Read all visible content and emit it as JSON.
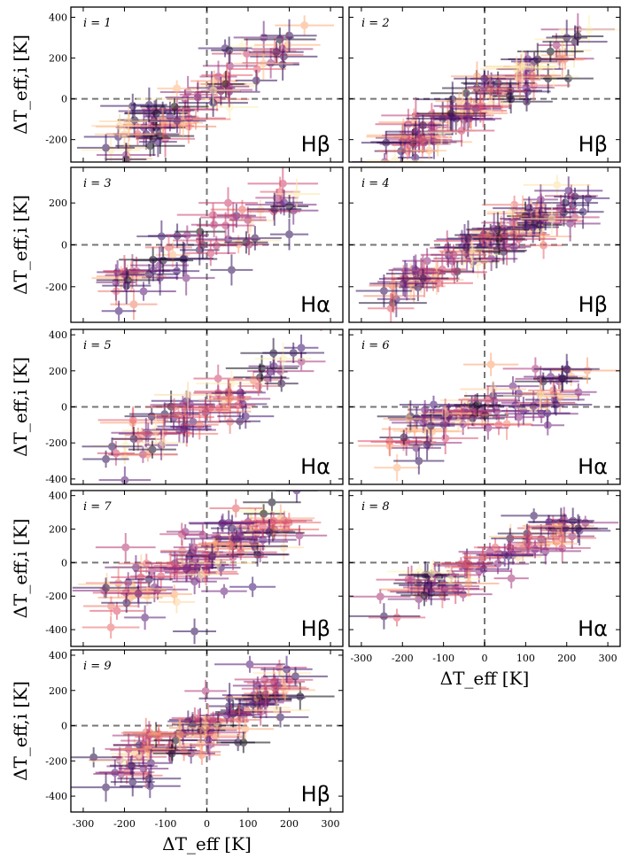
{
  "figure": {
    "ylabel": "ΔT_eff,i [K]",
    "xlabel": "ΔT_eff [K]",
    "x_ticks": [
      -300,
      -200,
      -100,
      0,
      100,
      200,
      300
    ],
    "colormap": [
      "#000004",
      "#3b0f70",
      "#8c2981",
      "#de4968",
      "#fe9f6d",
      "#fcfdbf"
    ]
  },
  "chart_data": [
    {
      "type": "scatter",
      "label": "i = 1",
      "line": "Hβ",
      "xlim": [
        -330,
        330
      ],
      "ylim": [
        -310,
        450
      ],
      "yticks": [
        -200,
        0,
        200,
        400
      ],
      "trend": {
        "slope": 1.15,
        "intercept": 10,
        "scatter": 70,
        "n": 80
      },
      "points": [
        [
          -245,
          -240
        ],
        [
          -140,
          -30
        ],
        [
          -180,
          -35
        ],
        [
          200,
          310
        ],
        [
          120,
          90
        ]
      ]
    },
    {
      "type": "scatter",
      "label": "i = 2",
      "line": "Hβ",
      "xlim": [
        -330,
        330
      ],
      "ylim": [
        -310,
        450
      ],
      "yticks": [
        -200,
        0,
        200,
        400
      ],
      "trend": {
        "slope": 1.1,
        "intercept": 0,
        "scatter": 55,
        "n": 110
      },
      "points": [
        [
          -240,
          -215
        ],
        [
          -150,
          -130
        ],
        [
          200,
          300
        ],
        [
          220,
          280
        ]
      ]
    },
    {
      "type": "scatter",
      "label": "i = 3",
      "line": "Hα",
      "xlim": [
        -330,
        330
      ],
      "ylim": [
        -370,
        370
      ],
      "yticks": [
        -200,
        0,
        200
      ],
      "trend": {
        "slope": 0.95,
        "intercept": 0,
        "scatter": 65,
        "n": 60
      },
      "points": [
        [
          -140,
          -140
        ],
        [
          -195,
          -195
        ],
        [
          200,
          50
        ],
        [
          60,
          -120
        ]
      ]
    },
    {
      "type": "scatter",
      "label": "i = 4",
      "line": "Hβ",
      "xlim": [
        -330,
        330
      ],
      "ylim": [
        -370,
        370
      ],
      "yticks": [
        -200,
        0,
        200
      ],
      "trend": {
        "slope": 1.0,
        "intercept": 0,
        "scatter": 45,
        "n": 110
      },
      "points": [
        [
          -245,
          -220
        ],
        [
          -150,
          -160
        ],
        [
          220,
          230
        ],
        [
          -40,
          30
        ]
      ]
    },
    {
      "type": "scatter",
      "label": "i = 5",
      "line": "Hα",
      "xlim": [
        -330,
        330
      ],
      "ylim": [
        -430,
        430
      ],
      "yticks": [
        -400,
        -200,
        0,
        200,
        400
      ],
      "trend": {
        "slope": 1.05,
        "intercept": 0,
        "scatter": 60,
        "n": 70
      },
      "points": [
        [
          -245,
          -290
        ],
        [
          -230,
          -220
        ],
        [
          210,
          300
        ],
        [
          80,
          -80
        ]
      ]
    },
    {
      "type": "scatter",
      "label": "i = 6",
      "line": "Hα",
      "xlim": [
        -330,
        330
      ],
      "ylim": [
        -430,
        430
      ],
      "yticks": [
        -400,
        -200,
        0,
        200,
        400
      ],
      "trend": {
        "slope": 0.75,
        "intercept": -20,
        "scatter": 70,
        "n": 80
      },
      "points": [
        [
          -160,
          -300
        ],
        [
          -140,
          -210
        ],
        [
          200,
          210
        ],
        [
          190,
          160
        ]
      ]
    },
    {
      "type": "scatter",
      "label": "i = 7",
      "line": "Hβ",
      "xlim": [
        -330,
        330
      ],
      "ylim": [
        -500,
        430
      ],
      "yticks": [
        -400,
        -200,
        0,
        200,
        400
      ],
      "trend": {
        "slope": 1.0,
        "intercept": 30,
        "scatter": 95,
        "n": 110
      },
      "points": [
        [
          -245,
          -150
        ],
        [
          -195,
          -240
        ],
        [
          -30,
          -410
        ],
        [
          -140,
          -100
        ]
      ]
    },
    {
      "type": "scatter",
      "label": "i = 8",
      "line": "Hα",
      "xlim": [
        -330,
        330
      ],
      "ylim": [
        -500,
        430
      ],
      "yticks": [
        -400,
        -200,
        0,
        200,
        400
      ],
      "trend": {
        "slope": 0.95,
        "intercept": 0,
        "scatter": 55,
        "n": 80
      },
      "points": [
        [
          -245,
          -320
        ],
        [
          -130,
          -180
        ],
        [
          120,
          280
        ],
        [
          215,
          250
        ]
      ]
    },
    {
      "type": "scatter",
      "label": "i = 9",
      "line": "Hβ",
      "xlim": [
        -330,
        330
      ],
      "ylim": [
        -490,
        430
      ],
      "yticks": [
        -400,
        -200,
        0,
        200,
        400
      ],
      "trend": {
        "slope": 1.1,
        "intercept": 0,
        "scatter": 85,
        "n": 110
      },
      "points": [
        [
          -245,
          -350
        ],
        [
          -140,
          -300
        ],
        [
          -180,
          -320
        ],
        [
          215,
          280
        ]
      ]
    }
  ]
}
